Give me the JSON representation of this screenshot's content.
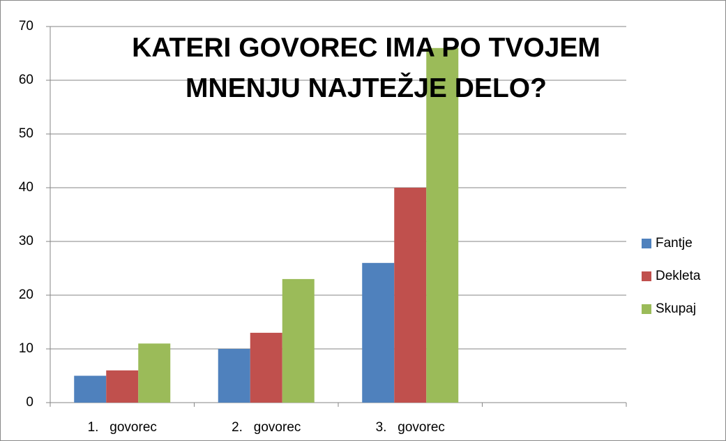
{
  "chart_data": {
    "type": "bar",
    "title": "KATERI GOVOREC IMA PO TVOJEM MNENJU NAJTEŽJE DELO?",
    "categories": [
      "1.   govorec",
      "2.   govorec",
      "3.   govorec",
      null
    ],
    "series": [
      {
        "name": "Fantje",
        "color": "#4f81bd",
        "values": [
          5,
          10,
          26,
          null
        ]
      },
      {
        "name": "Dekleta",
        "color": "#c0504d",
        "values": [
          6,
          13,
          40,
          null
        ]
      },
      {
        "name": "Skupaj",
        "color": "#9bbb59",
        "values": [
          11,
          23,
          66,
          null
        ]
      }
    ],
    "ylim": [
      0,
      70
    ],
    "yticks": [
      0,
      10,
      20,
      30,
      40,
      50,
      60,
      70
    ],
    "grid": true,
    "legend": "right"
  }
}
